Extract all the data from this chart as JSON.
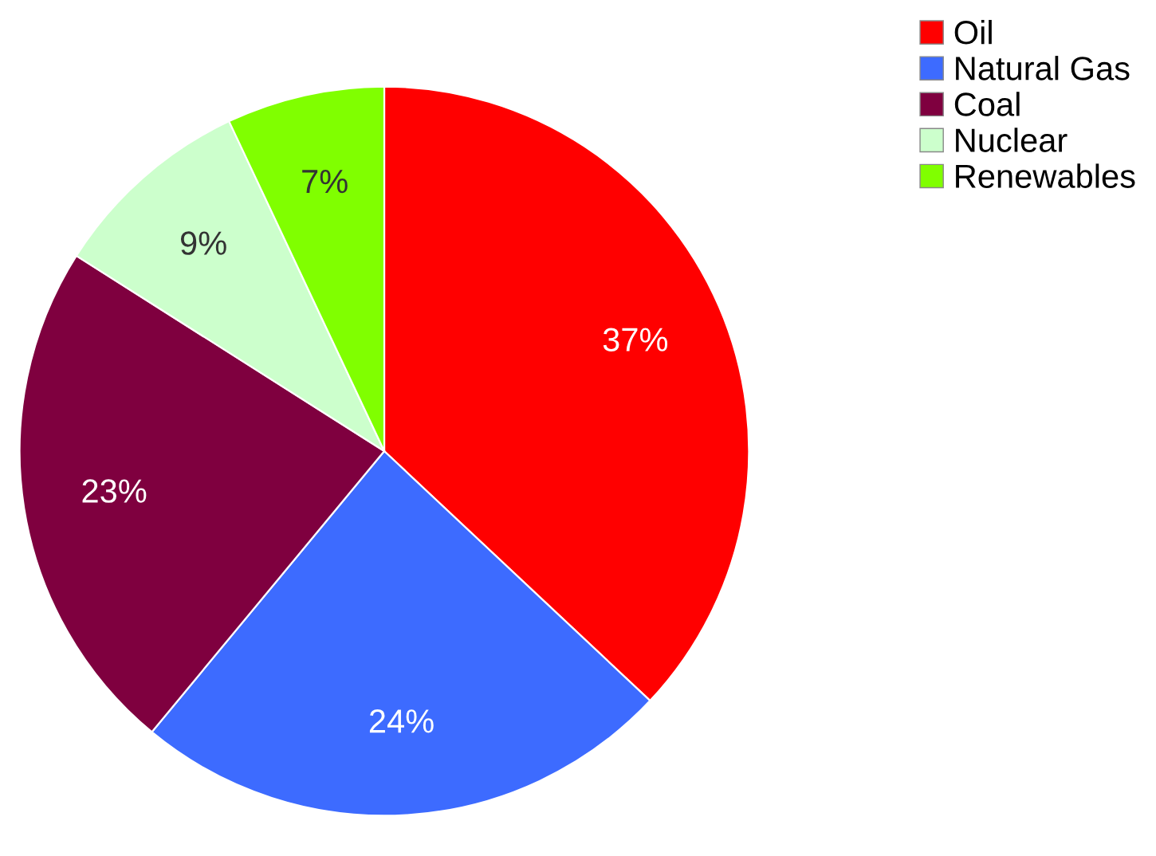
{
  "chart_data": {
    "type": "pie",
    "categories": [
      "Oil",
      "Natural Gas",
      "Coal",
      "Nuclear",
      "Renewables"
    ],
    "values": [
      37,
      24,
      23,
      9,
      7
    ],
    "colors": [
      "#ff0000",
      "#3d6bff",
      "#7f003f",
      "#ccffcc",
      "#80ff00"
    ],
    "value_labels": [
      "37%",
      "24%",
      "23%",
      "9%",
      "7%"
    ],
    "legend": "top right"
  }
}
